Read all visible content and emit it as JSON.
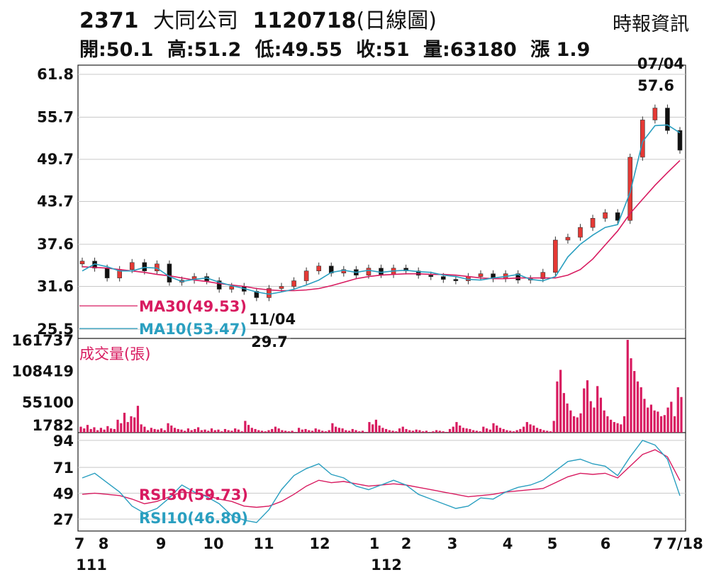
{
  "header": {
    "code": "2371",
    "name": "大同公司",
    "date": "1120718",
    "chart_kind": "(日線圖)",
    "source": "時報資訊",
    "quote": {
      "open": "開:50.1",
      "high": "高:51.2",
      "low": "低:49.55",
      "close": "收:51",
      "volume": "量:63180",
      "change": "漲 1.9"
    }
  },
  "chart_data": [
    {
      "type": "candlestick",
      "panel": "price",
      "y_ticks": [
        "61.8",
        "55.7",
        "49.7",
        "43.7",
        "37.6",
        "31.6",
        "25.5"
      ],
      "ylim": [
        25.5,
        61.8
      ],
      "grid": true,
      "series": [
        {
          "name": "MA30(49.53)",
          "color": "#d81b60",
          "values": [
            34.4,
            34.3,
            34.2,
            34.0,
            33.8,
            33.6,
            33.3,
            33.1,
            32.8,
            32.5,
            32.3,
            32.0,
            31.8,
            31.6,
            31.3,
            31.1,
            31.0,
            31.0,
            31.1,
            31.3,
            31.7,
            32.2,
            32.7,
            33.0,
            33.2,
            33.3,
            33.4,
            33.4,
            33.3,
            33.3,
            33.2,
            33.0,
            32.8,
            32.7,
            32.7,
            32.8,
            32.8,
            32.8,
            32.8,
            33.2,
            34.0,
            35.5,
            37.5,
            39.5,
            42.0,
            44.0,
            46.0,
            47.8,
            49.53
          ]
        },
        {
          "name": "MA10(53.47)",
          "color": "#2a9fc0",
          "values": [
            33.8,
            34.8,
            34.4,
            33.8,
            33.8,
            34.3,
            34.2,
            33.0,
            32.3,
            32.6,
            32.8,
            32.2,
            31.7,
            31.3,
            30.8,
            30.5,
            30.8,
            31.2,
            31.8,
            32.5,
            33.6,
            33.9,
            33.6,
            33.9,
            33.6,
            33.8,
            33.9,
            33.7,
            33.6,
            33.2,
            33.0,
            32.6,
            32.5,
            32.8,
            33.0,
            33.3,
            32.6,
            32.4,
            33.0,
            35.8,
            37.6,
            38.9,
            40.0,
            40.4,
            45.0,
            52.2,
            54.5,
            54.6,
            53.47
          ]
        }
      ],
      "candles_close": [
        35.2,
        34.2,
        32.8,
        34.0,
        35.0,
        33.8,
        34.8,
        32.2,
        32.5,
        33.0,
        32.4,
        31.2,
        31.6,
        30.9,
        30.0,
        31.3,
        31.6,
        32.4,
        33.8,
        34.5,
        33.5,
        34.0,
        33.2,
        34.2,
        33.3,
        34.2,
        33.8,
        33.2,
        33.0,
        32.6,
        32.4,
        33.0,
        33.4,
        32.7,
        33.4,
        32.5,
        32.7,
        33.6,
        38.2,
        38.6,
        40.0,
        41.3,
        42.1,
        41.0,
        50.0,
        55.3,
        57.0,
        53.8,
        51.0
      ],
      "annotations": [
        {
          "label": "07/04",
          "value": "57.6",
          "kind": "high"
        },
        {
          "label": "11/04",
          "value": "29.7",
          "kind": "low"
        }
      ]
    },
    {
      "type": "bar",
      "panel": "volume",
      "title": "成交量(張)",
      "y_ticks": [
        "161737",
        "108419",
        "55100",
        "1782"
      ],
      "ylim": [
        1782,
        161737
      ],
      "values": [
        12000,
        9000,
        15000,
        8000,
        11000,
        6000,
        10000,
        7000,
        13000,
        9000,
        8000,
        24000,
        18000,
        36000,
        20000,
        30000,
        28000,
        48000,
        16000,
        12000,
        6000,
        10000,
        8000,
        7000,
        9000,
        6000,
        18000,
        14000,
        10000,
        8000,
        7000,
        5000,
        9000,
        6000,
        8000,
        11000,
        6000,
        7000,
        5000,
        9000,
        6000,
        7000,
        4000,
        8000,
        6000,
        5000,
        9000,
        7000,
        4000,
        22000,
        15000,
        10000,
        8000,
        6000,
        5000,
        4000,
        6000,
        8000,
        12000,
        9000,
        6000,
        5000,
        4000,
        5000,
        3000,
        10000,
        7000,
        8000,
        6000,
        5000,
        9000,
        7000,
        5000,
        4000,
        6000,
        18000,
        12000,
        10000,
        9000,
        6000,
        5000,
        8000,
        6000,
        4000,
        5000,
        3000,
        20000,
        16000,
        24000,
        14000,
        10000,
        8000,
        6000,
        5000,
        4000,
        9000,
        12000,
        8000,
        6000,
        5000,
        7000,
        6000,
        4000,
        5000,
        3000,
        4000,
        6000,
        5000,
        4000,
        3000,
        8000,
        12000,
        20000,
        14000,
        10000,
        9000,
        8000,
        6000,
        5000,
        4000,
        12000,
        9000,
        7000,
        18000,
        14000,
        10000,
        8000,
        6000,
        5000,
        4000,
        6000,
        8000,
        12000,
        20000,
        16000,
        14000,
        10000,
        8000,
        6000,
        5000,
        4000,
        22000,
        90000,
        110000,
        70000,
        52000,
        40000,
        30000,
        28000,
        35000,
        78000,
        92000,
        56000,
        45000,
        82000,
        62000,
        40000,
        30000,
        24000,
        20000,
        18000,
        16000,
        30000,
        161737,
        130000,
        108000,
        90000,
        80000,
        60000,
        45000,
        50000,
        40000,
        38000,
        30000,
        32000,
        45000,
        55000,
        30000,
        80000,
        63180
      ]
    },
    {
      "type": "line",
      "panel": "rsi",
      "y_ticks": [
        "94",
        "71",
        "49",
        "27"
      ],
      "ylim": [
        18,
        100
      ],
      "series": [
        {
          "name": "RSI30(59.73)",
          "color": "#d81b60",
          "values": [
            48,
            49,
            48,
            47,
            44,
            40,
            42,
            46,
            50,
            49,
            47,
            44,
            42,
            38,
            37,
            38,
            42,
            48,
            55,
            60,
            58,
            59,
            57,
            55,
            56,
            57,
            56,
            54,
            52,
            50,
            48,
            46,
            47,
            48,
            50,
            51,
            52,
            53,
            58,
            63,
            66,
            65,
            66,
            62,
            72,
            82,
            86,
            80,
            59.73
          ]
        },
        {
          "name": "RSI10(46.80)",
          "color": "#2a9fc0",
          "values": [
            62,
            66,
            58,
            50,
            38,
            32,
            36,
            45,
            56,
            50,
            46,
            40,
            30,
            26,
            24,
            35,
            52,
            64,
            70,
            74,
            65,
            62,
            55,
            52,
            56,
            60,
            56,
            48,
            44,
            40,
            36,
            38,
            45,
            44,
            50,
            54,
            56,
            60,
            68,
            76,
            78,
            74,
            72,
            64,
            80,
            94,
            90,
            78,
            46.8
          ]
        }
      ]
    }
  ],
  "x_axis": {
    "month_ticks": [
      "7",
      "8",
      "9",
      "10",
      "11",
      "12",
      "1",
      "2",
      "3",
      "4",
      "5",
      "6",
      "7",
      "7/18"
    ],
    "year_ticks": [
      "111",
      "112"
    ]
  }
}
